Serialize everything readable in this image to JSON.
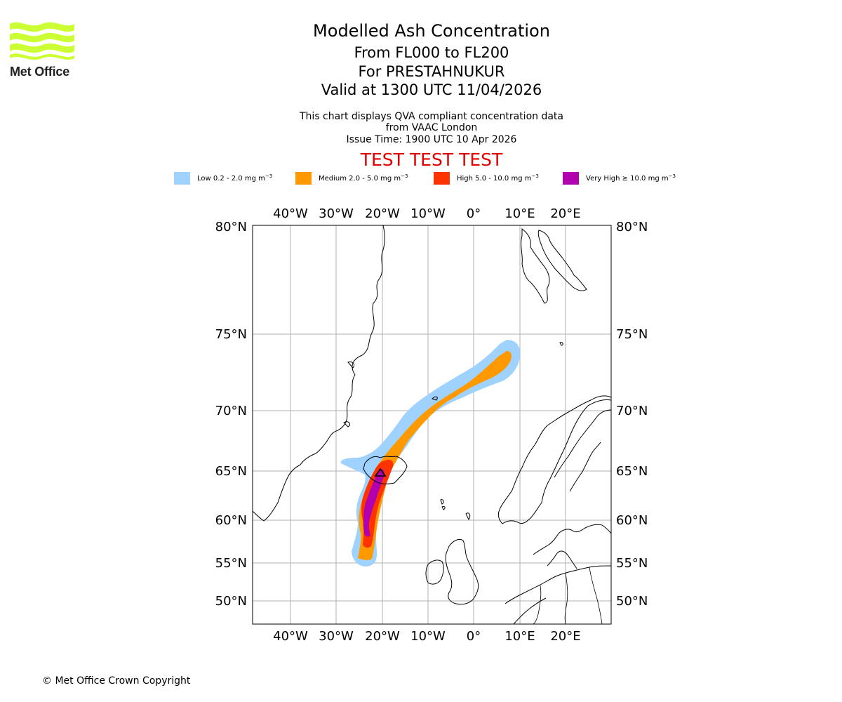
{
  "logo": {
    "brand": "Met Office",
    "color": "#ccff33"
  },
  "header": {
    "title": "Modelled Ash Concentration",
    "levels": "From FL000 to FL200",
    "volcano": "For PRESTAHNUKUR",
    "valid": "Valid at 1300 UTC 11/04/2026",
    "description": "This chart displays QVA compliant concentration data from VAAC London",
    "issue_time": "Issue Time: 1900 UTC 10 Apr 2026",
    "test_banner": "TEST TEST TEST"
  },
  "legend": [
    {
      "label": "Low 0.2 - 2.0 mg m",
      "exp": "−3",
      "color": "#a0d2ff"
    },
    {
      "label": "Medium 2.0 - 5.0 mg m",
      "exp": "−3",
      "color": "#ff9900"
    },
    {
      "label": "High 5.0 - 10.0 mg m",
      "exp": "−3",
      "color": "#ff3300"
    },
    {
      "label": "Very High  ≥  10.0 mg m",
      "exp": "−3",
      "color": "#b000b0"
    }
  ],
  "map": {
    "lon_labels": [
      "40°W",
      "30°W",
      "20°W",
      "10°W",
      "0°",
      "10°E",
      "20°E"
    ],
    "lat_labels": [
      "80°N",
      "75°N",
      "70°N",
      "65°N",
      "60°N",
      "55°N",
      "50°N"
    ],
    "grid_color": "#b0b0b0",
    "coast_color": "#000000"
  },
  "footer": {
    "copyright": "© Met Office Crown Copyright"
  }
}
